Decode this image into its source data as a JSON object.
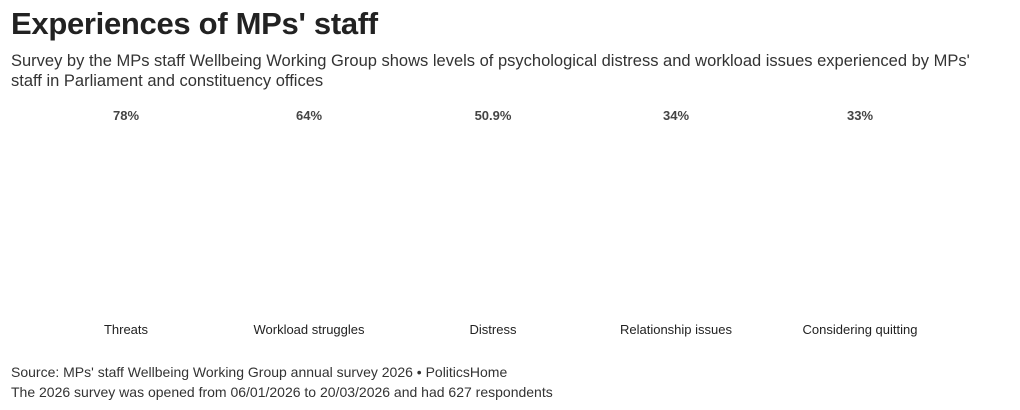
{
  "header": {
    "title": "Experiences of MPs' staff",
    "subtitle": "Survey by the MPs staff Wellbeing Working Group shows levels of psychological distress and workload issues experienced by MPs' staff in Parliament and constituency offices"
  },
  "chart_data": {
    "type": "bar",
    "title": "Experiences of MPs' staff",
    "categories": [
      "Threats",
      "Workload struggles",
      "Distress",
      "Relationship issues",
      "Considering quitting"
    ],
    "values": [
      78,
      64,
      50.9,
      34,
      33
    ],
    "value_labels": [
      "78%",
      "64%",
      "50.9%",
      "34%",
      "33%"
    ],
    "unit": "%",
    "ylim": [
      0,
      100
    ],
    "grid": false,
    "legend": "none"
  },
  "colors": {
    "fill": "#006a19",
    "empty": "#cbcbcb"
  },
  "icon": "person-icon",
  "footer": {
    "source": "Source: MPs' staff Wellbeing Working Group annual survey 2026 • PoliticsHome",
    "note": "The 2026 survey was opened from 06/01/2026 to 20/03/2026 and had 627 respondents"
  }
}
